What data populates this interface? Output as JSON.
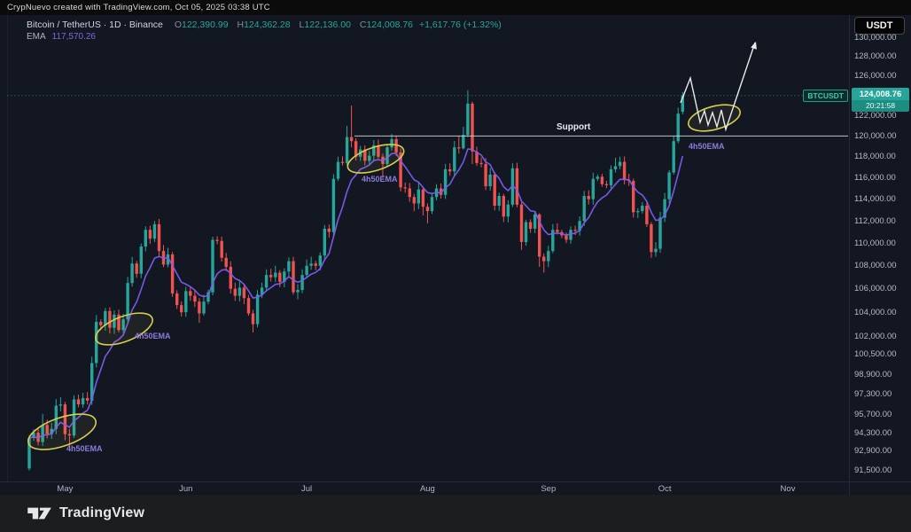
{
  "attribution": "CrypNuevo created with TradingView.com, Oct 05, 2025 03:38 UTC",
  "legend": {
    "title": "Bitcoin / TetherUS · 1D · Binance",
    "o_label": "O",
    "o": "122,390.99",
    "h_label": "H",
    "h": "124,362.28",
    "l_label": "L",
    "l": "122,136.00",
    "c_label": "C",
    "c": "124,008.76",
    "change": "+1,617.76 (+1.32%)",
    "ema_label": "EMA",
    "ema_value": "117,570.26"
  },
  "axis": {
    "currency_button": "USDT",
    "price_ticks": [
      {
        "label": "130,000.00",
        "v": 130000
      },
      {
        "label": "128,000.00",
        "v": 128000
      },
      {
        "label": "126,000.00",
        "v": 126000
      },
      {
        "label": "122,000.00",
        "v": 122000
      },
      {
        "label": "120,000.00",
        "v": 120000
      },
      {
        "label": "118,000.00",
        "v": 118000
      },
      {
        "label": "116,000.00",
        "v": 116000
      },
      {
        "label": "114,000.00",
        "v": 114000
      },
      {
        "label": "112,000.00",
        "v": 112000
      },
      {
        "label": "110,000.00",
        "v": 110000
      },
      {
        "label": "108,000.00",
        "v": 108000
      },
      {
        "label": "106,000.00",
        "v": 106000
      },
      {
        "label": "104,000.00",
        "v": 104000
      },
      {
        "label": "102,000.00",
        "v": 102000
      },
      {
        "label": "100,500.00",
        "v": 100500
      },
      {
        "label": "98,900.00",
        "v": 98900
      },
      {
        "label": "97,300.00",
        "v": 97300
      },
      {
        "label": "95,700.00",
        "v": 95700
      },
      {
        "label": "94,300.00",
        "v": 94300
      },
      {
        "label": "92,900.00",
        "v": 92900
      },
      {
        "label": "91,500.00",
        "v": 91500
      }
    ]
  },
  "badges": {
    "symbol": "BTCUSDT",
    "price": "124,008.76",
    "countdown": "20:21:58"
  },
  "annotations": {
    "support_label": "Support",
    "ema_annotation": "4h50EMA"
  },
  "footer": {
    "brand": "TradingView"
  },
  "colors": {
    "up": "#26a69a",
    "down": "#ef5350",
    "ema_line": "#7c5cf0",
    "ellipse": "#d6cd4e",
    "projection": "#e8eaed",
    "support_line": "#cfd3dc",
    "current_price_line": "#26a69a"
  },
  "chart_data": {
    "type": "candlestick",
    "symbol": "BTCUSDT",
    "exchange": "Binance",
    "timeframe": "1D",
    "scale": "log",
    "title": "Bitcoin / TetherUS",
    "support": {
      "label": "Support",
      "value": 120000
    },
    "last": {
      "open": 122390.99,
      "high": 124362.28,
      "low": 122136.0,
      "close": 124008.76,
      "change": 1617.76,
      "change_pct": 1.32
    },
    "ema_display_value": 117570.26,
    "months": [
      {
        "label": "May",
        "i": 8
      },
      {
        "label": "Jun",
        "i": 35
      },
      {
        "label": "Jul",
        "i": 62
      },
      {
        "label": "Aug",
        "i": 89
      },
      {
        "label": "Sep",
        "i": 116
      },
      {
        "label": "Oct",
        "i": 142
      },
      {
        "label": "Nov",
        "i": 169.5
      }
    ],
    "first_open": 91600,
    "candles": [
      [
        93900,
        94100,
        91450
      ],
      94300,
      93600,
      [
        94900,
        95750,
        93300
      ],
      94200,
      94600,
      96400,
      96500,
      94200,
      [
        94100,
        94600,
        93000
      ],
      96900,
      96500,
      97000,
      96800,
      99800,
      103200,
      102900,
      104100,
      102700,
      103800,
      102500,
      103400,
      106500,
      108200,
      107300,
      109700,
      111200,
      110400,
      [
        111700,
        112000,
        110100
      ],
      109300,
      108100,
      109000,
      105600,
      104600,
      104000,
      105800,
      105400,
      104900,
      [
        103900,
        105200,
        103100
      ],
      104900,
      105700,
      110300,
      110200,
      108700,
      107900,
      106000,
      105400,
      106100,
      105200,
      103900,
      [
        103000,
        104200,
        102300
      ],
      105500,
      106100,
      107200,
      107000,
      107400,
      106600,
      107500,
      108400,
      105700,
      [
        105900,
        106400,
        105100
      ],
      107200,
      108000,
      108200,
      108000,
      108900,
      111300,
      111000,
      115900,
      117500,
      117400,
      [
        119900,
        121000,
        117200
      ],
      [
        119500,
        123000,
        118900
      ],
      118000,
      118700,
      117600,
      118100,
      119100,
      118000,
      [
        117300,
        118300,
        116000
      ],
      118900,
      [
        119700,
        120200,
        118600
      ],
      118400,
      115100,
      115000,
      114200,
      [
        113600,
        114500,
        112900
      ],
      114900,
      [
        113300,
        115100,
        112500
      ],
      [
        112900,
        113600,
        111800
      ],
      114200,
      115000,
      114400,
      116800,
      116600,
      118900,
      [
        118800,
        120000,
        118300
      ],
      [
        120100,
        120900,
        118700
      ],
      [
        123200,
        124550,
        119900
      ],
      [
        118500,
        123400,
        117300
      ],
      117400,
      117300,
      115200,
      116300,
      113400,
      114300,
      [
        112400,
        114500,
        111900
      ],
      113500,
      116900,
      113500,
      [
        110100,
        113700,
        109400
      ],
      111900,
      111300,
      112600,
      [
        108800,
        112700,
        107900
      ],
      [
        108400,
        109100,
        107400
      ],
      109300,
      111200,
      111000,
      110700,
      110300,
      111200,
      111100,
      112000,
      114300,
      114000,
      115900,
      116100,
      115400,
      115300,
      116800,
      [
        117100,
        117900,
        116500
      ],
      [
        117500,
        118000,
        116800
      ],
      115800,
      115700,
      112800,
      112900,
      113400,
      111700,
      [
        109200,
        111900,
        108700
      ],
      [
        109500,
        110100,
        108800
      ],
      112300,
      114000,
      116500,
      [
        119500,
        120000,
        116300
      ],
      [
        122200,
        122800,
        119300
      ],
      [
        124008.76,
        124362.28,
        122136,
        122390.99
      ]
    ]
  }
}
